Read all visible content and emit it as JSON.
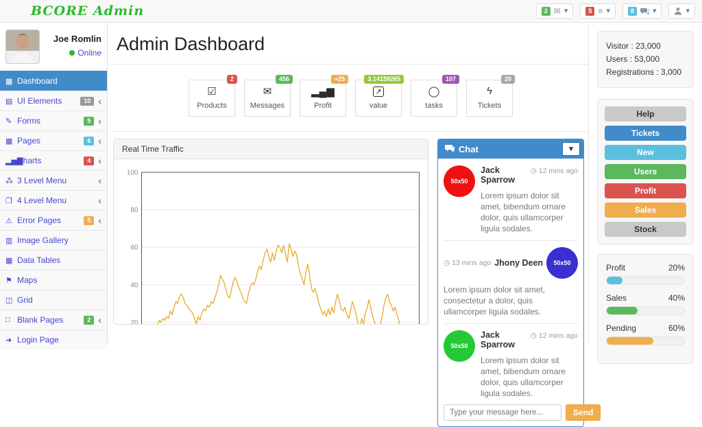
{
  "glyphs": {
    "chevron_left": "‹",
    "caret_down": "▾",
    "clock": "◷",
    "online_dot": "●"
  },
  "navbar": {
    "brand": "BCORE Admin",
    "brand_color": "#2db92d",
    "indicators": [
      {
        "id": "messages",
        "badge": "2",
        "badge_color": "#5cb85c",
        "icon": "envelope-icon",
        "glyph": "✉"
      },
      {
        "id": "alerts",
        "badge": "5",
        "badge_color": "#d9534f",
        "icon": "list-icon",
        "glyph": "≡"
      },
      {
        "id": "chats",
        "badge": "8",
        "badge_color": "#5bc0de",
        "icon": "chat-icon"
      },
      {
        "id": "user",
        "icon": "user-icon"
      }
    ]
  },
  "sidebar": {
    "profile": {
      "name": "Joe Romlin",
      "status": "Online"
    },
    "items": [
      {
        "label": "Dashboard",
        "icon": "▦",
        "active": true
      },
      {
        "label": "UI Elements",
        "icon": "▤",
        "badge": "10",
        "badge_color": "#999999"
      },
      {
        "label": "Forms",
        "icon": "✎",
        "badge": "5",
        "badge_color": "#5cb85c"
      },
      {
        "label": "Pages",
        "icon": "▦",
        "badge": "6",
        "badge_color": "#5bc0de"
      },
      {
        "label": "Charts",
        "icon": "▂▅▇",
        "badge": "4",
        "badge_color": "#d9534f"
      },
      {
        "label": "3 Level Menu",
        "icon": "⁂"
      },
      {
        "label": "4 Level Menu",
        "icon": "❐"
      },
      {
        "label": "Error Pages",
        "icon": "⚠",
        "badge": "5",
        "badge_color": "#f0ad4e"
      },
      {
        "label": "Image Gallery",
        "icon": "▥"
      },
      {
        "label": "Data Tables",
        "icon": "▦"
      },
      {
        "label": "Maps",
        "icon": "⚑"
      },
      {
        "label": "Grid",
        "icon": "◫"
      },
      {
        "label": "Blank Pages",
        "icon": "□",
        "badge": "2",
        "badge_color": "#5cb85c"
      },
      {
        "label": "Login Page",
        "icon": "➜"
      }
    ]
  },
  "main": {
    "title": "Admin Dashboard",
    "tiles": [
      {
        "label": "Products",
        "icon": "☑",
        "icon_name": "check-square-icon",
        "badge": "2",
        "badge_color": "#d9534f"
      },
      {
        "label": "Messages",
        "icon": "✉",
        "icon_name": "envelope-icon",
        "badge": "456",
        "badge_color": "#5cb85c"
      },
      {
        "label": "Profit",
        "icon": "▂▄▆",
        "icon_name": "signal-bars-icon",
        "badge": "+25",
        "badge_color": "#f0ad4e"
      },
      {
        "label": "value",
        "icon": "↗",
        "icon_name": "external-link-icon",
        "badge": "3.14159265",
        "badge_color": "#94c93d"
      },
      {
        "label": "tasks",
        "icon": "◯",
        "icon_name": "comment-icon",
        "badge": "107",
        "badge_color": "#9b59b6"
      },
      {
        "label": "Tickets",
        "icon": "ϟ",
        "icon_name": "bolt-icon",
        "badge": "20",
        "badge_color": "#a7a7a7"
      }
    ]
  },
  "chart_data": {
    "type": "line",
    "title": "Real Time Traffic",
    "xlabel": "",
    "ylabel": "",
    "yticks": [
      20,
      40,
      60,
      80,
      100
    ],
    "ylim_visible": [
      15,
      100
    ],
    "grid": true,
    "legend": "none",
    "line_color": "#eab038",
    "x_fraction_start": 0.05,
    "x_fraction_end": 0.94,
    "values": [
      13,
      18,
      21,
      20,
      22,
      21,
      23,
      22,
      26,
      24,
      28,
      31,
      30,
      34,
      35,
      33,
      30,
      29,
      27,
      26,
      25,
      22,
      19,
      23,
      21,
      25,
      27,
      26,
      29,
      28,
      31,
      30,
      33,
      36,
      40,
      45,
      43,
      41,
      37,
      34,
      33,
      38,
      42,
      44,
      41,
      38,
      36,
      33,
      31,
      30,
      35,
      39,
      41,
      40,
      43,
      47,
      50,
      48,
      53,
      57,
      59,
      55,
      52,
      57,
      53,
      58,
      61,
      60,
      57,
      61,
      56,
      52,
      62,
      59,
      55,
      58,
      56,
      50,
      46,
      43,
      40,
      47,
      51,
      45,
      38,
      36,
      38,
      34,
      30,
      27,
      24,
      26,
      23,
      27,
      24,
      28,
      25,
      31,
      35,
      31,
      27,
      26,
      28,
      24,
      22,
      26,
      31,
      28,
      24,
      19,
      17,
      22,
      19,
      25,
      28,
      32,
      27,
      23,
      20,
      16,
      14,
      19,
      23,
      29,
      33,
      35,
      31,
      29,
      26,
      28,
      24,
      21,
      15,
      12
    ]
  },
  "chat": {
    "title": "Chat",
    "messages": [
      {
        "name": "Jack Sparrow",
        "time": "12 mins ago",
        "avatar_label": "50x50",
        "avatar_color": "#ef1111",
        "side": "left",
        "text": "Lorem ipsum dolor sit amet, bibendum ornare dolor, quis ullamcorper ligula sodales."
      },
      {
        "name": "Jhony Deen",
        "time": "13 mins ago",
        "avatar_label": "50x50",
        "avatar_color": "#3a2fd0",
        "side": "right",
        "text": "Lorem ipsum dolor sit amet, consectetur a dolor, quis ullamcorper ligula sodales."
      },
      {
        "name": "Jack Sparrow",
        "time": "12 mins ago",
        "avatar_label": "50x50",
        "avatar_color": "#25c935",
        "side": "left",
        "text": "Lorem ipsum dolor sit amet, bibendum ornare dolor, quis ullamcorper ligula sodales."
      }
    ],
    "input_placeholder": "Type your message here...",
    "send_label": "Send"
  },
  "rail": {
    "stats": [
      {
        "label": "Visitor",
        "value": ": 23,000"
      },
      {
        "label": "Users",
        "value": ": 53,000"
      },
      {
        "label": "Registrations",
        "value": ": 3,000"
      }
    ],
    "buttons": [
      {
        "label": "Help",
        "color": "#c9c9c9",
        "text_color": "#333333"
      },
      {
        "label": "Tickets",
        "color": "#428bca",
        "text_color": "#ffffff"
      },
      {
        "label": "New",
        "color": "#5bc0de",
        "text_color": "#ffffff"
      },
      {
        "label": "Users",
        "color": "#5cb85c",
        "text_color": "#ffffff"
      },
      {
        "label": "Profit",
        "color": "#d9534f",
        "text_color": "#ffffff"
      },
      {
        "label": "Sales",
        "color": "#f0ad4e",
        "text_color": "#ffffff"
      },
      {
        "label": "Stock",
        "color": "#c9c9c9",
        "text_color": "#333333"
      }
    ],
    "progress": [
      {
        "label": "Profit",
        "percent": "20%",
        "color": "#5bc0de"
      },
      {
        "label": "Sales",
        "percent": "40%",
        "color": "#5cb85c"
      },
      {
        "label": "Pending",
        "percent": "60%",
        "color": "#f0ad4e"
      }
    ]
  }
}
